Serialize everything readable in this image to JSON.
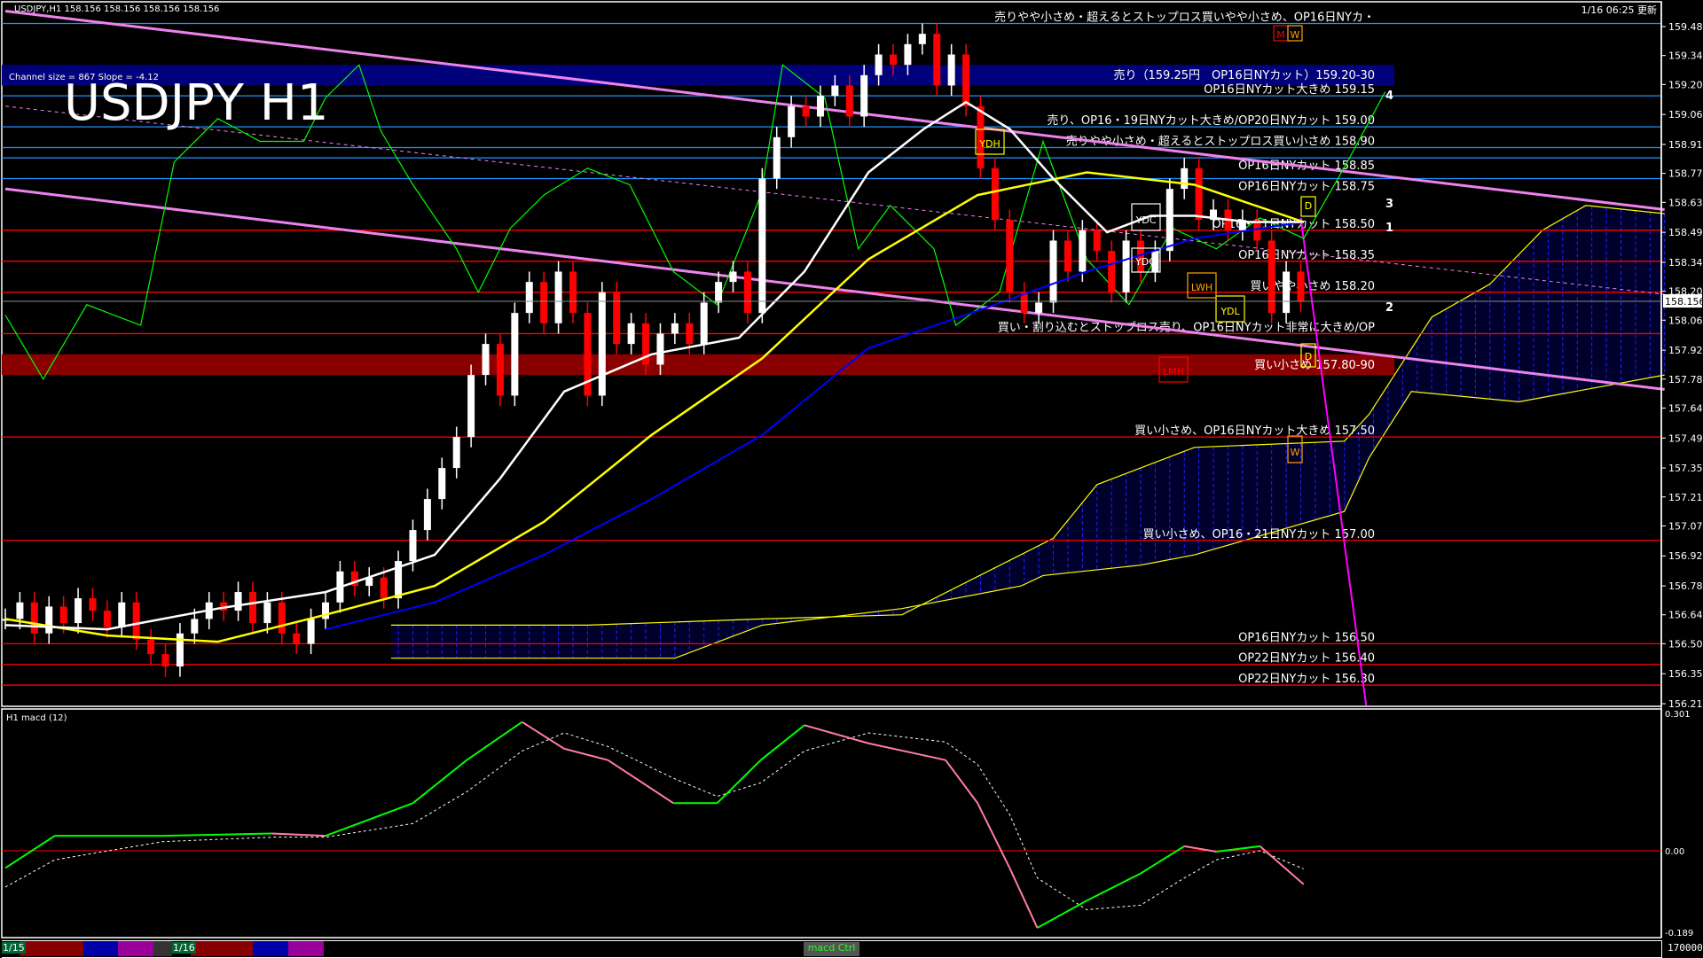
{
  "header": {
    "symbol_info": "USDJPY,H1  158.156 158.156 158.156 158.156",
    "big_title": "USDJPY H1",
    "channel_info": "Channel size = 867 Slope = -4.12",
    "updated": "1/16 06:25 更新",
    "current_price": "158.156"
  },
  "macd_panel": {
    "label": "H1  macd (12)",
    "axis_labels": [
      "0.301",
      "0.00",
      "-0.189"
    ]
  },
  "timebar": {
    "dates": [
      "1/15",
      "1/16"
    ],
    "macd_button": "macd Ctrl",
    "volume_label": "170000"
  },
  "colors": {
    "bull": "#ffffff",
    "bear": "#ff0000",
    "ma_fast": "#ffffff",
    "ma_slow": "#ffff00",
    "ma_blue": "#0000ff",
    "channel": "#ee82ee",
    "cloud": "#0000ff",
    "oscillator": "#00ff00",
    "macd_up": "#00ff00",
    "macd_down": "#ff7f9f",
    "level_sell": "#1e90ff",
    "level_buy": "#ff0000"
  },
  "chart_data": {
    "type": "candlestick",
    "title": "USDJPY H1",
    "ylim": [
      156.21,
      159.485
    ],
    "y_ticks": [
      "159.485",
      "159.345",
      "159.205",
      "159.060",
      "158.915",
      "158.775",
      "158.635",
      "158.490",
      "158.345",
      "158.205",
      "158.065",
      "157.920",
      "157.780",
      "157.640",
      "157.495",
      "157.350",
      "157.210",
      "157.070",
      "156.925",
      "156.780",
      "156.640",
      "156.500",
      "156.355",
      "156.210"
    ],
    "closes": [
      156.62,
      156.7,
      156.55,
      156.68,
      156.6,
      156.72,
      156.66,
      156.58,
      156.7,
      156.52,
      156.45,
      156.39,
      156.55,
      156.62,
      156.7,
      156.66,
      156.75,
      156.6,
      156.7,
      156.55,
      156.5,
      156.62,
      156.7,
      156.85,
      156.78,
      156.82,
      156.72,
      156.9,
      157.05,
      157.2,
      157.35,
      157.5,
      157.8,
      157.95,
      157.7,
      158.1,
      158.25,
      158.05,
      158.3,
      158.1,
      157.7,
      158.2,
      157.95,
      158.05,
      157.85,
      158.0,
      158.05,
      157.95,
      158.15,
      158.25,
      158.3,
      158.1,
      158.75,
      158.95,
      159.1,
      159.05,
      159.15,
      159.2,
      159.05,
      159.25,
      159.35,
      159.3,
      159.4,
      159.45,
      159.2,
      159.35,
      159.1,
      158.8,
      158.55,
      158.2,
      158.1,
      158.15,
      158.45,
      158.3,
      158.5,
      158.4,
      158.2,
      158.45,
      158.3,
      158.4,
      158.7,
      158.8,
      158.55,
      158.6,
      158.5,
      158.55,
      158.45,
      158.1,
      158.3,
      158.156
    ],
    "ma_fast": [
      [
        0,
        156.59
      ],
      [
        7,
        156.57
      ],
      [
        14.6,
        156.67
      ],
      [
        22,
        156.75
      ],
      [
        29.5,
        156.93
      ],
      [
        34,
        157.3
      ],
      [
        38.4,
        157.72
      ],
      [
        44.4,
        157.9
      ],
      [
        50.4,
        157.98
      ],
      [
        54.9,
        158.3
      ],
      [
        59.3,
        158.78
      ],
      [
        63.1,
        158.99
      ],
      [
        66,
        159.12
      ],
      [
        69,
        158.99
      ],
      [
        72,
        158.75
      ],
      [
        75.7,
        158.49
      ],
      [
        78.7,
        158.57
      ],
      [
        81.7,
        158.57
      ],
      [
        85.4,
        158.54
      ],
      [
        89.2,
        158.54
      ]
    ],
    "ma_slow": [
      [
        0,
        156.62
      ],
      [
        7,
        156.54
      ],
      [
        14.6,
        156.51
      ],
      [
        22,
        156.64
      ],
      [
        29.5,
        156.78
      ],
      [
        37,
        157.09
      ],
      [
        44.4,
        157.51
      ],
      [
        52,
        157.88
      ],
      [
        59.3,
        158.36
      ],
      [
        66.8,
        158.67
      ],
      [
        74.3,
        158.78
      ],
      [
        81.7,
        158.72
      ],
      [
        89.2,
        158.54
      ]
    ],
    "ma_blue": [
      [
        22,
        156.57
      ],
      [
        29.5,
        156.7
      ],
      [
        37,
        156.93
      ],
      [
        44.4,
        157.2
      ],
      [
        52,
        157.51
      ],
      [
        59.3,
        157.93
      ],
      [
        66.8,
        158.11
      ],
      [
        74.3,
        158.3
      ],
      [
        81.7,
        158.46
      ],
      [
        89.2,
        158.54
      ]
    ],
    "oscillator": [
      [
        0,
        158.09
      ],
      [
        2.6,
        157.78
      ],
      [
        5.6,
        158.14
      ],
      [
        9.3,
        158.04
      ],
      [
        11.6,
        158.83
      ],
      [
        14.6,
        159.04
      ],
      [
        17.5,
        158.93
      ],
      [
        20.5,
        158.93
      ],
      [
        22,
        159.14
      ],
      [
        24.3,
        159.3
      ],
      [
        25.8,
        158.98
      ],
      [
        28,
        158.72
      ],
      [
        31,
        158.41
      ],
      [
        32.5,
        158.2
      ],
      [
        34.7,
        158.51
      ],
      [
        37,
        158.67
      ],
      [
        40,
        158.8
      ],
      [
        42.9,
        158.72
      ],
      [
        45.9,
        158.3
      ],
      [
        48.9,
        158.14
      ],
      [
        51.9,
        158.67
      ],
      [
        53.4,
        159.3
      ],
      [
        56.3,
        159.14
      ],
      [
        58.6,
        158.41
      ],
      [
        60.8,
        158.62
      ],
      [
        63.8,
        158.41
      ],
      [
        65.3,
        158.04
      ],
      [
        68.3,
        158.2
      ],
      [
        71.3,
        158.93
      ],
      [
        74.3,
        158.36
      ],
      [
        77.2,
        158.14
      ],
      [
        80.2,
        158.51
      ],
      [
        83.2,
        158.41
      ],
      [
        86.2,
        158.56
      ],
      [
        89.2,
        158.46
      ],
      [
        92.2,
        158.83
      ],
      [
        94.8,
        159.17
      ]
    ],
    "cloud_upper": [
      [
        26.5,
        156.59
      ],
      [
        40,
        156.59
      ],
      [
        52,
        156.62
      ],
      [
        61.6,
        156.64
      ],
      [
        72,
        157.01
      ],
      [
        75,
        157.27
      ],
      [
        81.7,
        157.45
      ],
      [
        92,
        157.48
      ],
      [
        93.7,
        157.61
      ],
      [
        98,
        158.08
      ],
      [
        102,
        158.24
      ],
      [
        105.6,
        158.5
      ],
      [
        108.6,
        158.62
      ],
      [
        114,
        158.58
      ]
    ],
    "cloud_lower": [
      [
        26.5,
        156.43
      ],
      [
        46,
        156.43
      ],
      [
        52,
        156.59
      ],
      [
        61.6,
        156.67
      ],
      [
        69.8,
        156.78
      ],
      [
        71.3,
        156.83
      ],
      [
        78,
        156.88
      ],
      [
        81.7,
        156.93
      ],
      [
        92,
        157.14
      ],
      [
        93.7,
        157.4
      ],
      [
        96.6,
        157.72
      ],
      [
        104,
        157.67
      ],
      [
        114,
        157.8
      ]
    ],
    "channel": {
      "upper": [
        [
          0,
          159.56
        ],
        [
          114,
          158.6
        ]
      ],
      "middle": [
        [
          0,
          159.1
        ],
        [
          114,
          158.19
        ]
      ],
      "lower": [
        [
          0,
          158.7
        ],
        [
          114,
          157.73
        ]
      ],
      "steep": [
        [
          89,
          158.56
        ],
        [
          93.5,
          156.2
        ]
      ]
    },
    "macd": {
      "x": [
        0,
        3.4,
        10.8,
        18.3,
        22,
        28,
        31.7,
        35.5,
        38.4,
        41.4,
        45.9,
        48.9,
        51.9,
        54.9,
        59.3,
        64.6,
        66.8,
        69,
        70.9,
        74.3,
        78,
        81,
        83.2,
        86.2,
        89.2
      ],
      "main": [
        -0.038,
        0.033,
        0.033,
        0.038,
        0.033,
        0.105,
        0.2,
        0.284,
        0.225,
        0.2,
        0.105,
        0.105,
        0.2,
        0.277,
        0.237,
        0.2,
        0.105,
        -0.038,
        -0.17,
        -0.11,
        -0.05,
        0.01,
        -0.002,
        0.01,
        -0.074
      ],
      "signal": [
        -0.08,
        -0.02,
        0.02,
        0.03,
        0.03,
        0.06,
        0.13,
        0.22,
        0.26,
        0.23,
        0.16,
        0.12,
        0.15,
        0.22,
        0.26,
        0.24,
        0.19,
        0.08,
        -0.06,
        -0.13,
        -0.12,
        -0.06,
        -0.02,
        0.0,
        -0.04
      ],
      "ylim": [
        -0.189,
        0.301
      ]
    },
    "levels": [
      {
        "price": 159.5,
        "kind": "sell",
        "label": "売りやや小さめ・超えるとストップロス買いやや小さめ、OP16日NYカ・"
      },
      {
        "price": 159.25,
        "kind": "sell-band",
        "band": [
          159.2,
          159.3
        ],
        "label": "売り（159.25円　OP16日NYカット）159.20-30"
      },
      {
        "price": 159.15,
        "kind": "sell",
        "label": "OP16日NYカット大きめ 159.15"
      },
      {
        "price": 159.0,
        "kind": "sell",
        "label": "売り、OP16・19日NYカット大きめ/OP20日NYカット 159.00"
      },
      {
        "price": 158.9,
        "kind": "sell",
        "label": "売りやや小さめ・超えるとストップロス買い小さめ 158.90"
      },
      {
        "price": 158.85,
        "kind": "sell",
        "label": "OP16日NYカット 158.85"
      },
      {
        "price": 158.75,
        "kind": "sell",
        "label": "OP16日NYカット 158.75"
      },
      {
        "price": 158.5,
        "kind": "buy",
        "label": "OP16・21日NYカット 158.50"
      },
      {
        "price": 158.35,
        "kind": "buy",
        "label": "OP16日NYカット 158.35"
      },
      {
        "price": 158.2,
        "kind": "buy",
        "label": "買いやや小さめ 158.20"
      },
      {
        "price": 158.0,
        "kind": "buy",
        "label": "買い・割り込むとストップロス売り、OP16日NYカット非常に大きめ/OP"
      },
      {
        "price": 157.85,
        "kind": "buy-band",
        "band": [
          157.8,
          157.9
        ],
        "label": "買い小さめ 157.80-90"
      },
      {
        "price": 157.5,
        "kind": "buy",
        "label": "買い小さめ、OP16日NYカット大きめ 157.50"
      },
      {
        "price": 157.0,
        "kind": "buy",
        "label": "買い小さめ、OP16・21日NYカット 157.00"
      },
      {
        "price": 156.5,
        "kind": "buy",
        "label": "OP16日NYカット 156.50"
      },
      {
        "price": 156.4,
        "kind": "buy",
        "label": "OP22日NYカット 156.40"
      },
      {
        "price": 156.3,
        "kind": "buy",
        "label": "OP22日NYカット 156.30"
      }
    ],
    "markers": [
      {
        "label": "YDC",
        "color": "#ffffff"
      },
      {
        "label": "YDO",
        "color": "#ffffff"
      },
      {
        "label": "YDH",
        "color": "#ffff00"
      },
      {
        "label": "YDL",
        "color": "#ffff00"
      },
      {
        "label": "LWH",
        "color": "#ffa500"
      },
      {
        "label": "LMH",
        "color": "#ff0000"
      },
      {
        "label": "M",
        "color": "#ff0000"
      },
      {
        "label": "W",
        "color": "#ffa500"
      },
      {
        "label": "D",
        "color": "#ffff00"
      },
      {
        "label": "D",
        "color": "#ffff00"
      },
      {
        "label": "W",
        "color": "#ffa500"
      }
    ],
    "wave_labels": [
      "4",
      "3",
      "1",
      "2"
    ]
  }
}
